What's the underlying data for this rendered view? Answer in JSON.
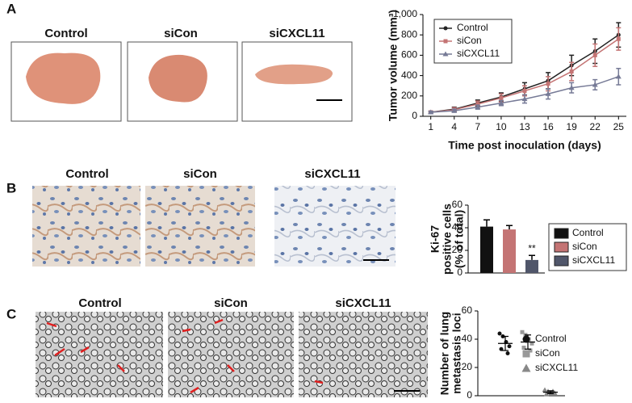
{
  "panels": [
    "A",
    "B",
    "C"
  ],
  "images": {
    "A": [
      "Control",
      "siCon",
      "siCXCL11"
    ],
    "B": [
      "Control",
      "siCon",
      "siCXCL11"
    ],
    "C": [
      "Control",
      "siCon",
      "siCXCL11"
    ]
  },
  "chart_data": [
    {
      "type": "line",
      "xlabel": "Time post inoculation (days)",
      "ylabel": "Tumor volume (mm³)",
      "x": [
        1,
        4,
        7,
        10,
        13,
        16,
        19,
        22,
        25
      ],
      "xlim": [
        0,
        26
      ],
      "xticks": [
        1,
        4,
        7,
        10,
        13,
        16,
        19,
        22,
        25
      ],
      "ylim": [
        0,
        1000
      ],
      "yticks": [
        0,
        200,
        400,
        600,
        800,
        {
          "value": 1000,
          "label": "1,000"
        }
      ],
      "legend": "upper left",
      "series": [
        {
          "name": "Control",
          "color": "#222222",
          "marker": "circle",
          "values": [
            40,
            70,
            130,
            190,
            270,
            350,
            500,
            640,
            800
          ],
          "errors": [
            10,
            20,
            30,
            40,
            60,
            80,
            100,
            120,
            120
          ]
        },
        {
          "name": "siCon",
          "color": "#c47474",
          "marker": "square",
          "values": [
            40,
            65,
            120,
            180,
            250,
            320,
            440,
            600,
            760
          ],
          "errors": [
            10,
            20,
            30,
            40,
            50,
            70,
            90,
            110,
            110
          ]
        },
        {
          "name": "siCXCL11",
          "color": "#767a96",
          "marker": "triangle",
          "values": [
            40,
            55,
            90,
            130,
            170,
            220,
            280,
            310,
            390
          ],
          "errors": [
            10,
            15,
            20,
            25,
            40,
            50,
            50,
            50,
            80
          ]
        }
      ]
    },
    {
      "type": "bar",
      "ylabel": [
        "Ki-67",
        "positive cells",
        "(% of total)"
      ],
      "ylim": [
        0,
        60
      ],
      "yticks": [
        0,
        20,
        40,
        60
      ],
      "legend": "right",
      "annotation": "**",
      "series": [
        {
          "name": "Control",
          "color": "#111111",
          "values": [
            41
          ],
          "errors": [
            6
          ]
        },
        {
          "name": "siCon",
          "color": "#c47474",
          "values": [
            38.5
          ],
          "errors": [
            3.5
          ]
        },
        {
          "name": "siCXCL11",
          "color": "#50566a",
          "values": [
            11.5
          ],
          "errors": [
            4
          ]
        }
      ]
    },
    {
      "type": "scatter",
      "ylabel": [
        "Number of lung",
        "metastasis loci"
      ],
      "ylim": [
        0,
        60
      ],
      "yticks": [
        0,
        20,
        40,
        60
      ],
      "legend": "right",
      "series": [
        {
          "name": "Control",
          "color": "#111111",
          "marker": "circle",
          "values": [
            44,
            42,
            38,
            35,
            33,
            30
          ],
          "mean": 37,
          "error": 5
        },
        {
          "name": "siCon",
          "color": "#999999",
          "marker": "square",
          "values": [
            45,
            43,
            40,
            37,
            34,
            32
          ],
          "mean": 38,
          "error": 5
        },
        {
          "name": "siCXCL11",
          "color": "#888888",
          "marker": "triangle",
          "values": [
            4,
            3,
            2,
            2,
            1,
            3
          ],
          "mean": 2.5,
          "error": 1
        }
      ]
    }
  ]
}
